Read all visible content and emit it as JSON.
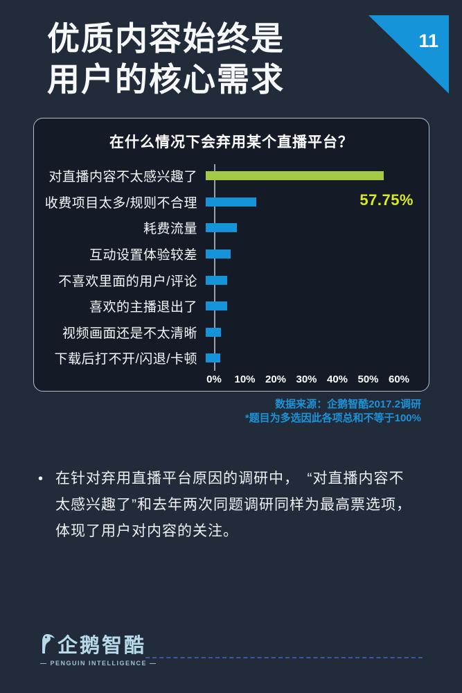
{
  "page": {
    "title": "优质内容始终是\n用户的核心需求",
    "page_number": "11",
    "background_color": "#222b39",
    "panel_color": "#141b27",
    "accent_blue": "#1694d9"
  },
  "chart": {
    "title": "在什么情况下会弃用某个直播平台？",
    "value_label": "57.75%",
    "source_line1": "数据来源：企鹅智酷2017.2调研",
    "source_line2": "*题目为多选因此各项总和不等于100%"
  },
  "chart_data": {
    "type": "bar",
    "orientation": "horizontal",
    "title": "在什么情况下会弃用某个直播平台？",
    "categories": [
      "对直播内容不太感兴趣了",
      "收费项目太多/规则不合理",
      "耗费流量",
      "互动设置体验较差",
      "不喜欢里面的用户/评论",
      "喜欢的主播退出了",
      "视频画面还是不太清晰",
      "下载后打不开/闪退/卡顿"
    ],
    "values": [
      57.75,
      16.5,
      10,
      8,
      7,
      7,
      5,
      4.8
    ],
    "value_labels": [
      "57.75%",
      "",
      "",
      "",
      "",
      "",
      "",
      ""
    ],
    "x_ticks": [
      "0%",
      "10%",
      "20%",
      "30%",
      "40%",
      "50%",
      "60%"
    ],
    "xlim": [
      0,
      60
    ],
    "grid": false,
    "legend": false,
    "bar_color": "#1694d9",
    "highlight_bar_color": "#a4c944",
    "value_label_color": "#d9e922"
  },
  "commentary": {
    "bullet": "•",
    "lines": [
      "在针对弃用直播平台原因的调研中，　“对直播内容不",
      "太感兴趣了”和去年两次同题调研同样为最高票选项，",
      "体现了用户对内容的关注。"
    ]
  },
  "footer": {
    "logo_text": "企鹅智酷",
    "logo_subtext": "— PENGUIN INTELLIGENCE —",
    "logo_color": "#b7daeb",
    "divider_color": "#3c57a6"
  }
}
